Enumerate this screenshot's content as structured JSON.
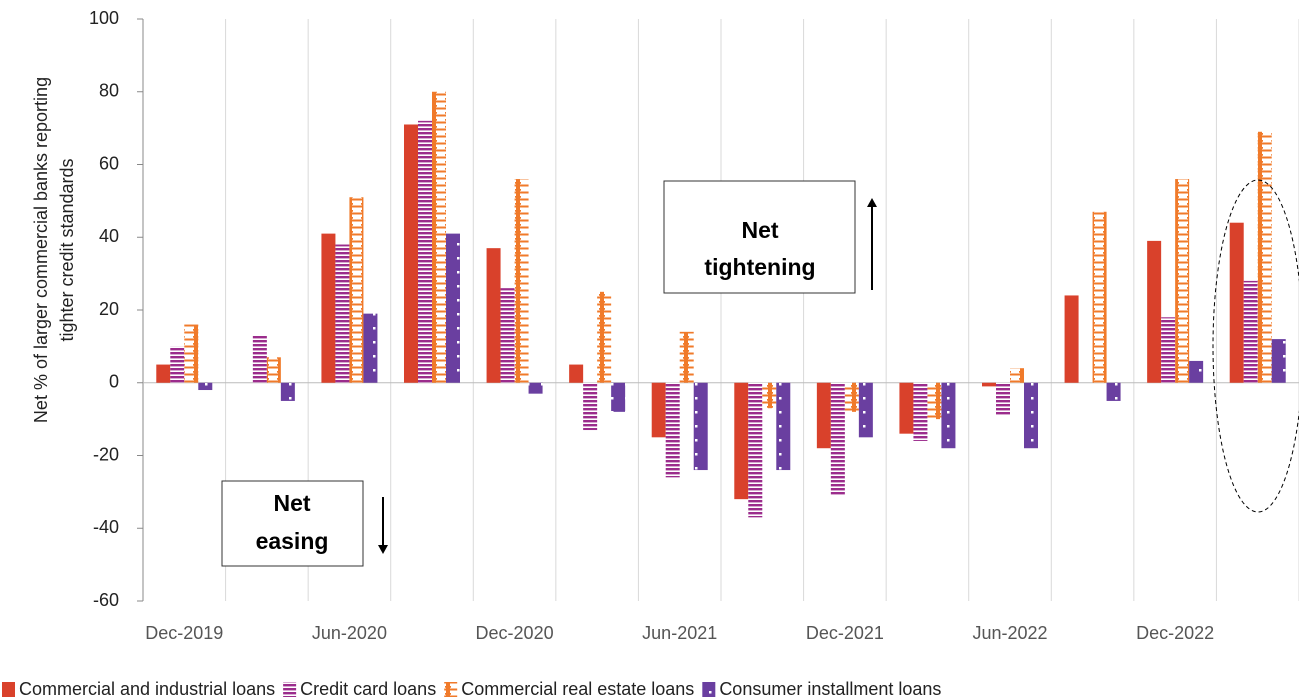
{
  "chart_data": {
    "type": "bar",
    "ylabel": [
      "Net % of larger commercial banks reporting",
      "tighter credit standards"
    ],
    "categories": [
      "Dec-2019",
      null,
      "Jun-2020",
      null,
      "Dec-2020",
      null,
      "Jun-2021",
      null,
      "Dec-2021",
      null,
      "Jun-2022",
      null,
      "Dec-2022",
      null
    ],
    "series": [
      {
        "name": "Commercial and industrial loans",
        "color": "#d9412b",
        "pattern": "solid",
        "values": [
          5,
          0,
          41,
          71,
          37,
          5,
          -15,
          -32,
          -18,
          -14,
          -1,
          24,
          39,
          44
        ]
      },
      {
        "name": "Credit card loans",
        "color": "#9b2c8c",
        "pattern": "hstripes",
        "values": [
          10,
          13,
          38,
          72,
          26,
          -13,
          -26,
          -37,
          -31,
          -16,
          -9,
          0,
          18,
          28
        ]
      },
      {
        "name": "Commercial real estate loans",
        "color": "#f07a2a",
        "pattern": "zigzag",
        "values": [
          16,
          7,
          51,
          80,
          56,
          25,
          14,
          -7,
          -8,
          -10,
          4,
          47,
          56,
          69
        ]
      },
      {
        "name": "Consumer installment loans",
        "color": "#6a3fa0",
        "pattern": "dots",
        "values": [
          -2,
          -5,
          19,
          41,
          -3,
          -8,
          -24,
          -24,
          -15,
          -18,
          -18,
          -5,
          6,
          12
        ]
      }
    ],
    "ylim": [
      -60,
      100
    ],
    "yticks": [
      -60,
      -40,
      -20,
      0,
      20,
      40,
      60,
      80,
      100
    ],
    "grid": true,
    "annotations": [
      [
        "Net",
        "tightening"
      ],
      [
        "Net",
        "easing"
      ]
    ]
  }
}
